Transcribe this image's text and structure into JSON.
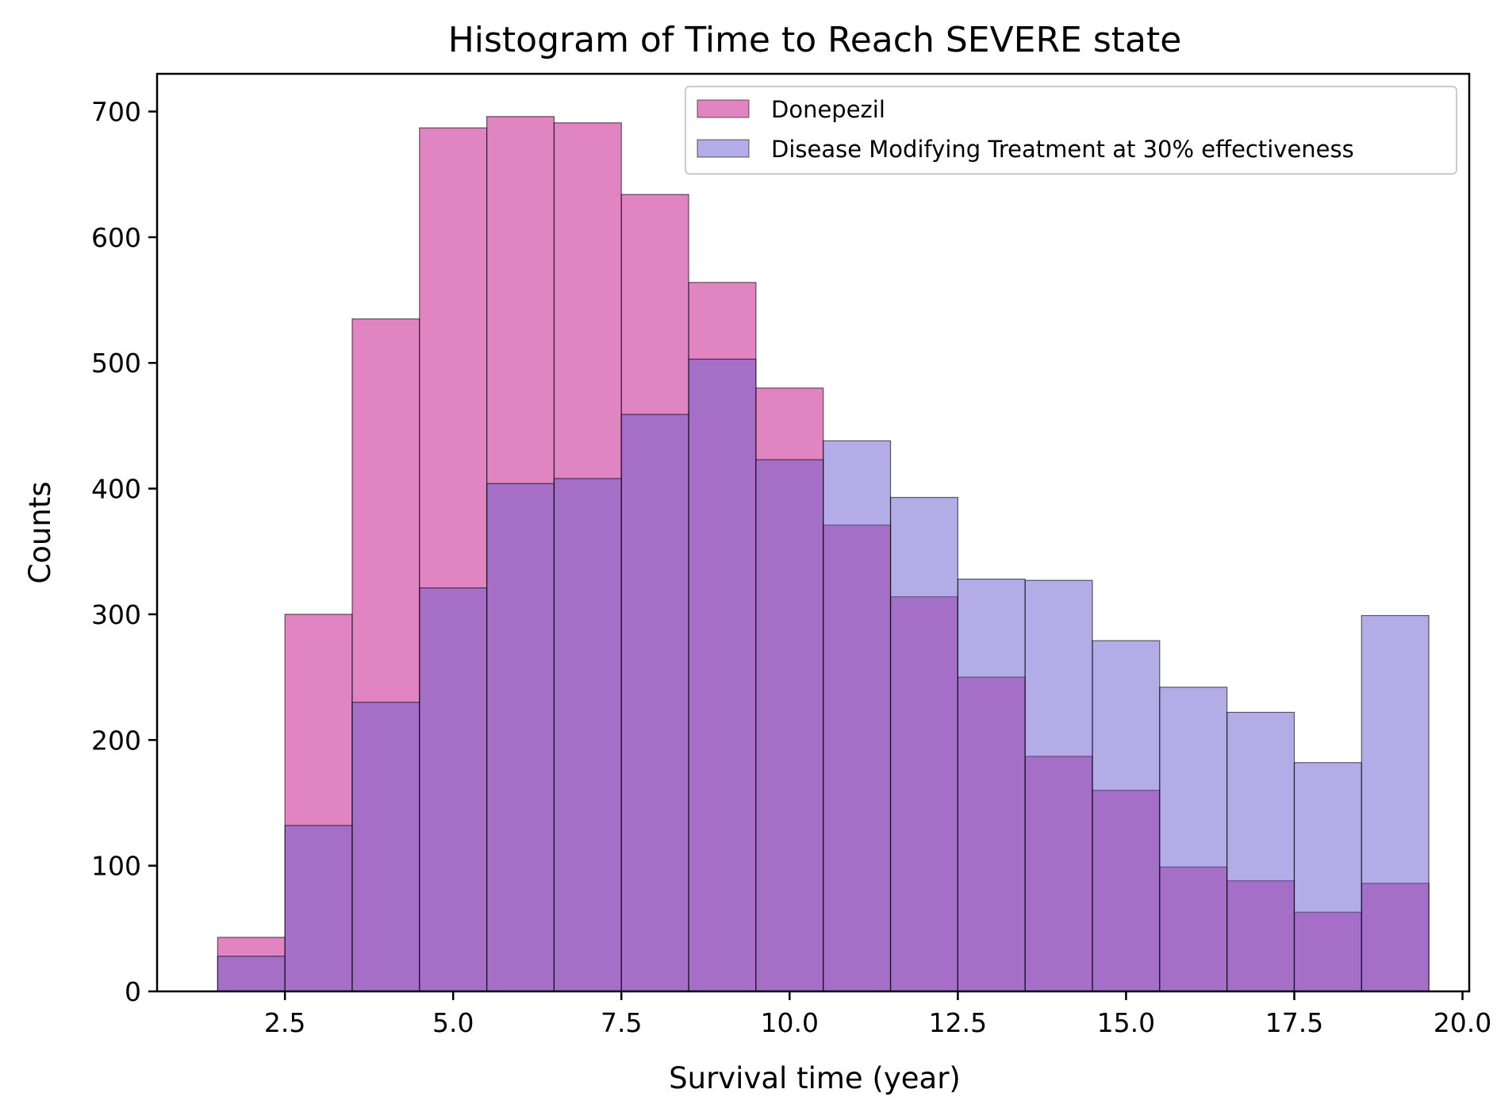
{
  "chart_data": {
    "type": "histogram",
    "title": "Histogram of Time to Reach SEVERE state",
    "xlabel": "Survival time (year)",
    "ylabel": "Counts",
    "xlim": [
      0.6,
      20.1
    ],
    "ylim": [
      0,
      730
    ],
    "xticks": [
      2.5,
      5.0,
      7.5,
      10.0,
      12.5,
      15.0,
      17.5,
      20.0
    ],
    "xtick_labels": [
      "2.5",
      "5.0",
      "7.5",
      "10.0",
      "12.5",
      "15.0",
      "17.5",
      "20.0"
    ],
    "yticks": [
      0,
      100,
      200,
      300,
      400,
      500,
      600,
      700
    ],
    "ytick_labels": [
      "0",
      "100",
      "200",
      "300",
      "400",
      "500",
      "600",
      "700"
    ],
    "bin_edges": [
      1.5,
      2.5,
      3.5,
      4.5,
      5.5,
      6.5,
      7.5,
      8.5,
      9.5,
      10.5,
      11.5,
      12.5,
      13.5,
      14.5,
      15.5,
      16.5,
      17.5,
      18.5,
      19.5
    ],
    "legend_position": "top-right",
    "grid": false,
    "series": [
      {
        "name": "Donepezil",
        "color": "#cc3399",
        "opacity": 0.6,
        "values": [
          43,
          300,
          535,
          687,
          696,
          691,
          634,
          564,
          480,
          371,
          314,
          250,
          187,
          160,
          99,
          88,
          63,
          86
        ]
      },
      {
        "name": "Disease Modifying Treatment at 30% effectiveness",
        "color": "#6a5acd",
        "opacity": 0.5,
        "values": [
          28,
          132,
          230,
          321,
          404,
          408,
          459,
          503,
          423,
          438,
          393,
          328,
          327,
          279,
          242,
          222,
          182,
          299
        ]
      }
    ]
  }
}
